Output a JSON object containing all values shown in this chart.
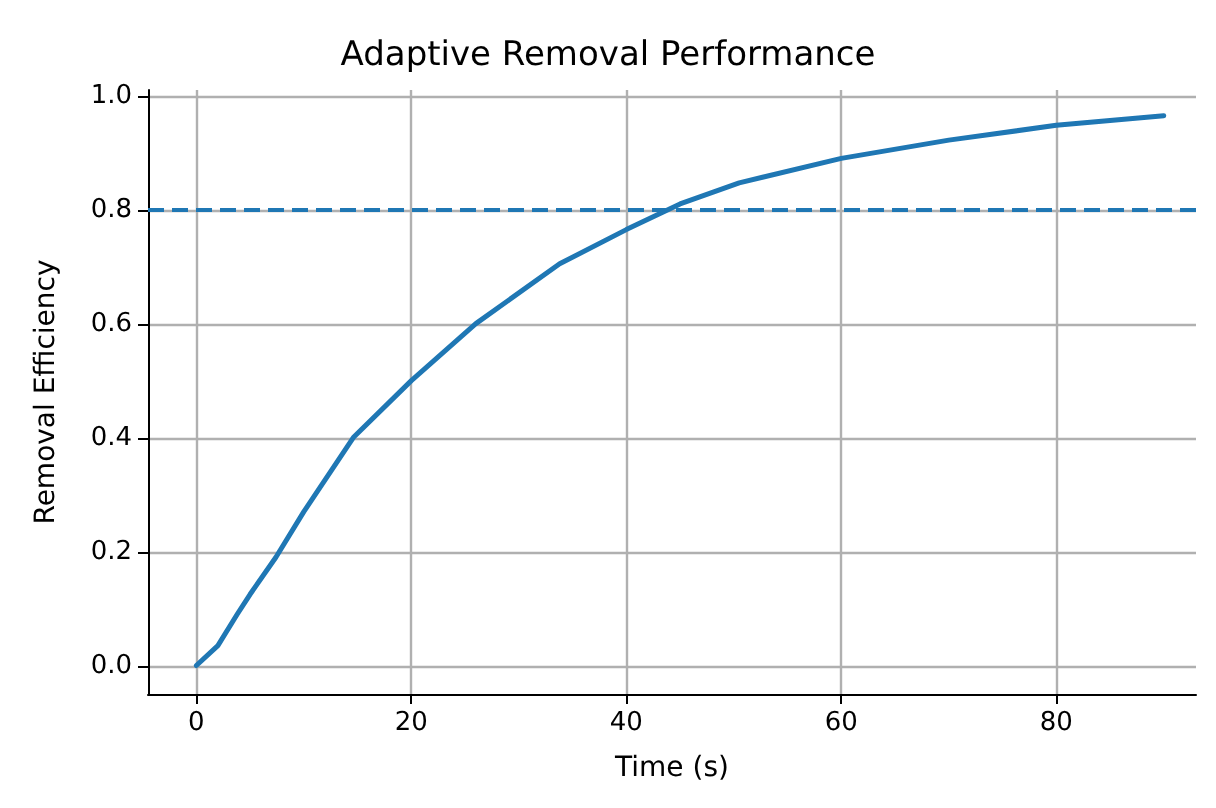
{
  "chart_data": {
    "type": "line",
    "title": "Adaptive Removal Performance",
    "xlabel": "Time (s)",
    "ylabel": "Removal Efficiency",
    "x": [
      0,
      2,
      3.8,
      5,
      7.4,
      10,
      14.6,
      20,
      26,
      33.8,
      40,
      45,
      50.5,
      60,
      70,
      80,
      90
    ],
    "series": [
      {
        "color": "#1f77b4",
        "values": [
          0,
          0.035,
          0.09,
          0.125,
          0.19,
          0.27,
          0.4,
          0.5,
          0.6,
          0.705,
          0.765,
          0.81,
          0.847,
          0.89,
          0.922,
          0.948,
          0.965
        ]
      }
    ],
    "xlim": [
      -4.5,
      93
    ],
    "xticks": [
      0,
      20,
      40,
      60,
      80
    ],
    "ylim": [
      -0.05,
      1.01
    ],
    "yticks": [
      {
        "value": 0,
        "label": "0.0"
      },
      {
        "value": 0.2,
        "label": "0.2"
      },
      {
        "value": 0.4,
        "label": "0.4"
      },
      {
        "value": 0.6,
        "label": "0.6"
      },
      {
        "value": 0.8,
        "label": "0.8"
      },
      {
        "value": 1,
        "label": "1.0"
      }
    ],
    "ref_lines": [
      {
        "axis": "y",
        "value": 0.8,
        "color": "#1f77b4",
        "line_style": "dashed"
      }
    ],
    "grid": true,
    "marker": "none",
    "line_style": "solid"
  }
}
